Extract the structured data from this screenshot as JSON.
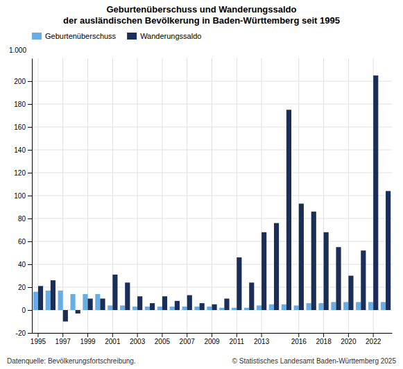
{
  "chart_data": {
    "type": "bar",
    "title": "Geburtenüberschuss und Wanderungssaldo",
    "subtitle": "der ausländischen Bevölkerung in Baden-Württemberg seit 1995",
    "y_label": "1.000",
    "categories": [
      1995,
      null,
      1997,
      null,
      1999,
      null,
      2001,
      null,
      2003,
      null,
      2005,
      null,
      2007,
      null,
      2009,
      null,
      2011,
      null,
      2013,
      null,
      null,
      2016,
      null,
      2018,
      null,
      2020,
      null,
      2022,
      null
    ],
    "series": [
      {
        "name": "Geburtenüberschuss",
        "color": "#6aade4",
        "values": [
          16,
          17,
          17,
          14,
          14,
          14,
          4,
          4,
          3,
          3,
          3,
          3,
          3,
          3,
          3,
          2,
          2,
          2,
          4,
          5,
          5,
          4,
          6,
          6,
          7,
          7,
          7,
          7,
          7
        ]
      },
      {
        "name": "Wanderungssaldo",
        "color": "#1a2e58",
        "values": [
          21,
          26,
          -10,
          -3,
          10,
          10,
          31,
          24,
          12,
          6,
          12,
          8,
          13,
          6,
          5,
          10,
          46,
          24,
          68,
          76,
          175,
          93,
          86,
          68,
          55,
          30,
          52,
          205,
          104
        ]
      }
    ],
    "ylim": [
      -20,
      220
    ],
    "yticks": [
      -20,
      0,
      20,
      40,
      60,
      80,
      100,
      120,
      140,
      160,
      180,
      200
    ],
    "grid": true,
    "legend": "upper left",
    "annotations": [
      "Datenquelle: Bevölkerungsfortschreibung.",
      "© Statistisches Landesamt Baden-Württemberg 2025"
    ]
  }
}
